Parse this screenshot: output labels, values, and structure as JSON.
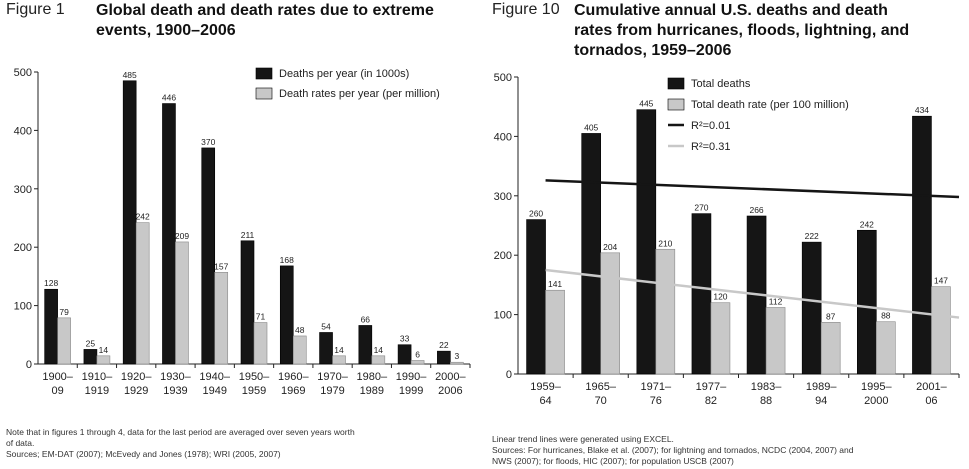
{
  "chart_data": [
    {
      "type": "bar",
      "figure_label": "Figure 1",
      "title": "Global death and death rates due to extreme events, 1900–2006",
      "categories": [
        [
          "1900–",
          "09"
        ],
        [
          "1910–",
          "1919"
        ],
        [
          "1920–",
          "1929"
        ],
        [
          "1930–",
          "1939"
        ],
        [
          "1940–",
          "1949"
        ],
        [
          "1950–",
          "1959"
        ],
        [
          "1960–",
          "1969"
        ],
        [
          "1970–",
          "1979"
        ],
        [
          "1980–",
          "1989"
        ],
        [
          "1990–",
          "1999"
        ],
        [
          "2000–",
          "2006"
        ]
      ],
      "series": [
        {
          "name": "Deaths per year (in 1000s)",
          "values": [
            128,
            25,
            485,
            446,
            370,
            211,
            168,
            54,
            66,
            33,
            22
          ],
          "labels": [
            "128",
            "25",
            "485",
            "446",
            "370",
            "211",
            "168",
            "54",
            "66",
            "33",
            "22"
          ],
          "color": "#151515"
        },
        {
          "name": "Death rates per year (per million)",
          "values": [
            79,
            14,
            242,
            209,
            157,
            71,
            48,
            14,
            14,
            6,
            3
          ],
          "labels": [
            "79",
            "14",
            "242",
            "209",
            "157",
            "71",
            "48",
            "14",
            "14",
            "6",
            "3"
          ],
          "color": "#c8c8c8"
        }
      ],
      "ylim": [
        0,
        500
      ],
      "yticks": [
        "0",
        "100",
        "200",
        "300",
        "400",
        "500"
      ],
      "grid": false,
      "legend": "top-right",
      "notes": [
        "Note that in figures 1 through 4, data for the last period are averaged over seven years worth",
        "of data.",
        "Sources; EM-DAT (2007); McEvedy and Jones (1978); WRI (2005, 2007)"
      ]
    },
    {
      "type": "bar",
      "figure_label": "Figure 10",
      "title": "Cumulative annual U.S. deaths and death rates from hurricanes, floods, lightning, and tornados, 1959–2006",
      "title_lines": [
        "Cumulative annual U.S. deaths and death",
        "rates from hurricanes, floods, lightning, and",
        "tornados, 1959–2006"
      ],
      "categories": [
        [
          "1959–",
          "64"
        ],
        [
          "1965–",
          "70"
        ],
        [
          "1971–",
          "76"
        ],
        [
          "1977–",
          "82"
        ],
        [
          "1983–",
          "88"
        ],
        [
          "1989–",
          "94"
        ],
        [
          "1995–",
          "2000"
        ],
        [
          "2001–",
          "06"
        ]
      ],
      "series": [
        {
          "name": "Total deaths",
          "values": [
            260,
            405,
            445,
            270,
            266,
            222,
            242,
            434
          ],
          "labels": [
            "260",
            "405",
            "445",
            "270",
            "266",
            "222",
            "242",
            "434"
          ],
          "color": "#151515"
        },
        {
          "name": "Total death rate (per 100 million)",
          "values": [
            141,
            204,
            210,
            120,
            112,
            87,
            88,
            147
          ],
          "labels": [
            "141",
            "204",
            "210",
            "120",
            "112",
            "87",
            "88",
            "147"
          ],
          "color": "#c8c8c8"
        }
      ],
      "trendlines": [
        {
          "name": "R²=0.01",
          "color": "#151515",
          "start": 326,
          "end": 298
        },
        {
          "name": "R²=0.31",
          "color": "#c8c8c8",
          "start": 175,
          "end": 95
        }
      ],
      "ylim": [
        0,
        500
      ],
      "yticks": [
        "0",
        "100",
        "200",
        "300",
        "400",
        "500"
      ],
      "grid": false,
      "legend": "top",
      "notes": [
        "Linear trend lines were generated using EXCEL.",
        "Sources: For hurricanes, Blake et al. (2007); for lightning and tornados, NCDC (2004, 2007) and",
        "NWS (2007); for floods, HIC (2007); for population USCB (2007)"
      ]
    }
  ]
}
